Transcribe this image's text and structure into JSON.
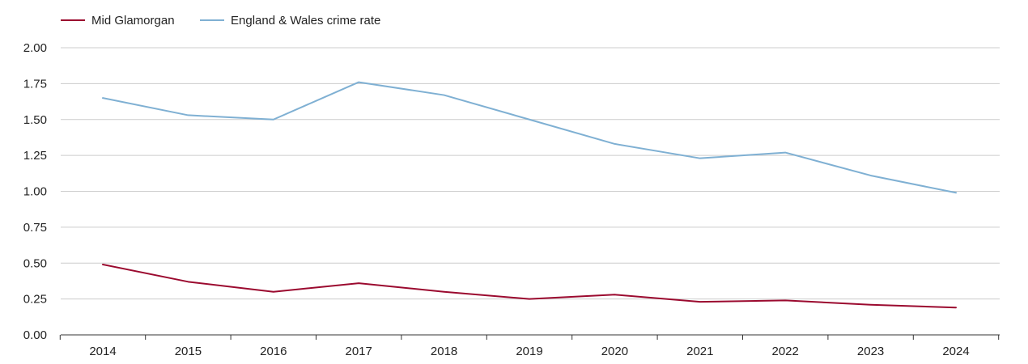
{
  "chart_data": {
    "type": "line",
    "title": "",
    "xlabel": "",
    "ylabel": "",
    "x": [
      "2014",
      "2015",
      "2016",
      "2017",
      "2018",
      "2019",
      "2020",
      "2021",
      "2022",
      "2023",
      "2024"
    ],
    "ylim": [
      0,
      2
    ],
    "yticks": [
      "0.00",
      "0.25",
      "0.50",
      "0.75",
      "1.00",
      "1.25",
      "1.50",
      "1.75",
      "2.00"
    ],
    "grid": true,
    "legend_position": "top-left",
    "series": [
      {
        "name": "Mid Glamorgan",
        "color": "#9b0a2f",
        "values": [
          0.49,
          0.37,
          0.3,
          0.36,
          0.3,
          0.25,
          0.28,
          0.23,
          0.24,
          0.21,
          0.19
        ]
      },
      {
        "name": "England & Wales crime rate",
        "color": "#7fb0d3",
        "values": [
          1.65,
          1.53,
          1.5,
          1.76,
          1.67,
          1.5,
          1.33,
          1.23,
          1.27,
          1.11,
          0.99
        ]
      }
    ]
  }
}
